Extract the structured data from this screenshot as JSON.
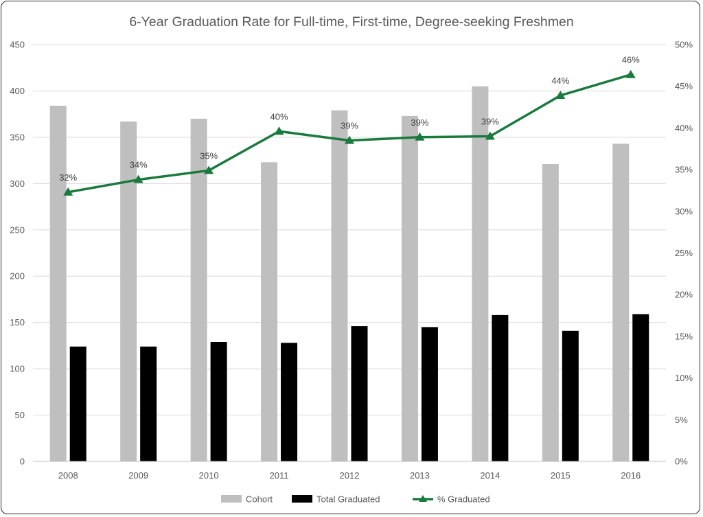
{
  "chart_data": {
    "type": "bar",
    "title": "6-Year Graduation Rate for Full-time, First-time, Degree-seeking Freshmen",
    "categories": [
      "2008",
      "2009",
      "2010",
      "2011",
      "2012",
      "2013",
      "2014",
      "2015",
      "2016"
    ],
    "series": [
      {
        "name": "Cohort",
        "kind": "bar",
        "axis": "left",
        "color": "#bfbfbf",
        "values": [
          384,
          367,
          370,
          323,
          379,
          373,
          405,
          321,
          343
        ]
      },
      {
        "name": "Total Graduated",
        "kind": "bar",
        "axis": "left",
        "color": "#000000",
        "values": [
          124,
          124,
          129,
          128,
          146,
          145,
          158,
          141,
          159
        ]
      },
      {
        "name": "% Graduated",
        "kind": "line",
        "axis": "right",
        "color": "#1a7a3e",
        "marker": "triangle",
        "values": [
          32.3,
          33.8,
          34.9,
          39.6,
          38.5,
          38.9,
          39.0,
          43.9,
          46.4
        ],
        "labels": [
          "32%",
          "34%",
          "35%",
          "40%",
          "39%",
          "39%",
          "39%",
          "44%",
          "46%"
        ]
      }
    ],
    "y_left": {
      "min": 0,
      "max": 450,
      "ticks": [
        "0",
        "50",
        "100",
        "150",
        "200",
        "250",
        "300",
        "350",
        "400",
        "450"
      ]
    },
    "y_right": {
      "min": 0,
      "max": 50,
      "ticks": [
        "0%",
        "5%",
        "10%",
        "15%",
        "20%",
        "25%",
        "30%",
        "35%",
        "40%",
        "45%",
        "50%"
      ]
    },
    "grid": true,
    "legend_position": "bottom"
  }
}
